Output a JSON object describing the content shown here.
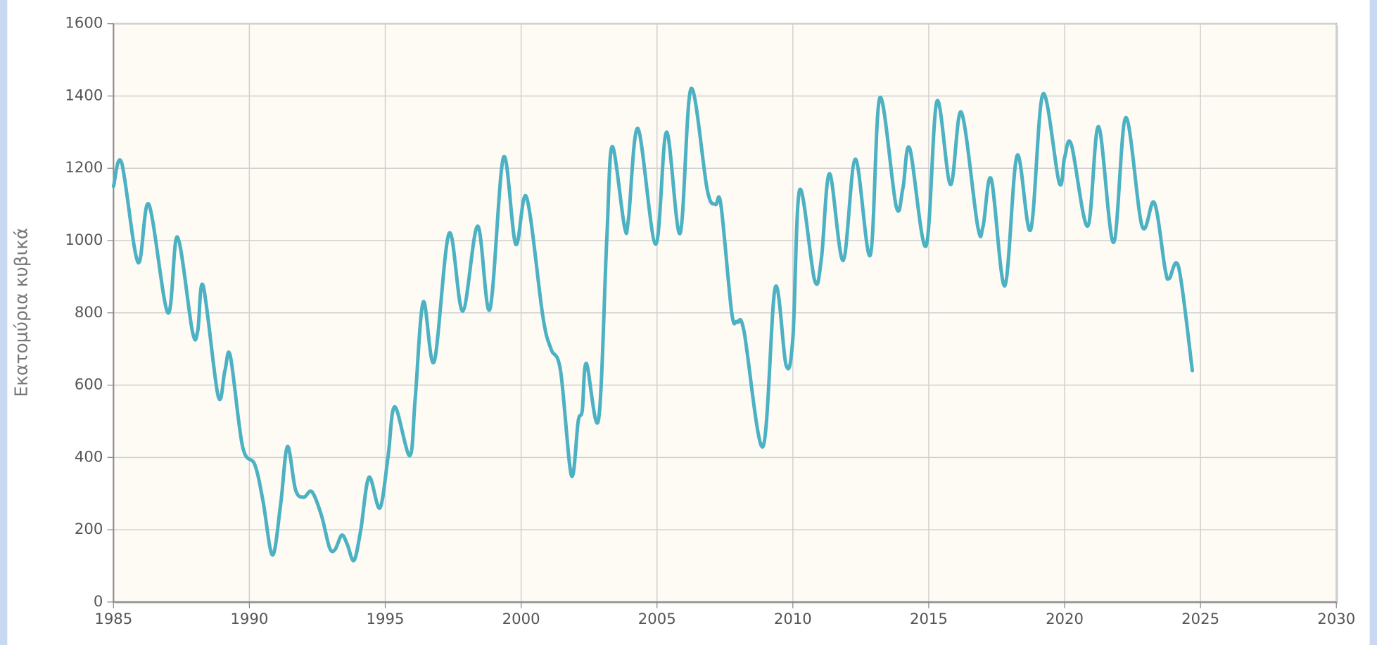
{
  "chart_data": {
    "type": "line",
    "y_label": "Εκατομύρια κυβικά",
    "xlim": [
      1985,
      2030
    ],
    "xticks": [
      1985,
      1990,
      1995,
      2000,
      2005,
      2010,
      2015,
      2020,
      2025,
      2030
    ],
    "ylim": [
      0,
      1600
    ],
    "yticks": [
      0,
      200,
      400,
      600,
      800,
      1000,
      1200,
      1400,
      1600
    ],
    "grid": true,
    "series": [
      {
        "color": "#4db1c4",
        "x": [
          1985.0,
          1985.3,
          1985.9,
          1986.3,
          1987.0,
          1987.35,
          1987.9,
          1988.1,
          1988.3,
          1988.85,
          1989.1,
          1989.3,
          1989.75,
          1990.2,
          1990.5,
          1990.85,
          1991.15,
          1991.4,
          1991.7,
          1992.0,
          1992.3,
          1992.65,
          1992.95,
          1993.15,
          1993.4,
          1993.6,
          1993.85,
          1994.1,
          1994.4,
          1994.8,
          1995.1,
          1995.35,
          1995.9,
          1996.1,
          1996.4,
          1996.8,
          1997.35,
          1997.85,
          1998.4,
          1998.85,
          1999.35,
          1999.8,
          2000.2,
          2000.8,
          2001.1,
          2001.45,
          2001.85,
          2002.1,
          2002.25,
          2002.4,
          2002.85,
          2003.15,
          2003.35,
          2003.8,
          2003.95,
          2004.3,
          2004.95,
          2005.35,
          2005.85,
          2006.25,
          2006.85,
          2007.15,
          2007.35,
          2007.75,
          2007.95,
          2008.2,
          2008.9,
          2009.35,
          2009.75,
          2010.0,
          2010.25,
          2010.8,
          2011.05,
          2011.35,
          2011.85,
          2012.3,
          2012.85,
          2013.2,
          2013.8,
          2014.05,
          2014.3,
          2014.9,
          2015.3,
          2015.8,
          2016.2,
          2016.8,
          2017.0,
          2017.3,
          2017.8,
          2018.25,
          2018.75,
          2019.2,
          2019.8,
          2020.0,
          2020.25,
          2020.85,
          2021.25,
          2021.8,
          2022.25,
          2022.85,
          2023.3,
          2023.7,
          2023.85,
          2024.2,
          2024.7
        ],
        "values": [
          1150,
          1215,
          940,
          1100,
          800,
          1010,
          750,
          750,
          875,
          570,
          640,
          680,
          430,
          380,
          280,
          130,
          270,
          430,
          310,
          290,
          305,
          240,
          150,
          145,
          185,
          160,
          115,
          200,
          345,
          260,
          400,
          540,
          405,
          560,
          830,
          665,
          1020,
          805,
          1040,
          810,
          1230,
          990,
          1120,
          790,
          700,
          640,
          350,
          500,
          530,
          660,
          505,
          1000,
          1260,
          1040,
          1060,
          1310,
          990,
          1300,
          1020,
          1420,
          1140,
          1100,
          1100,
          800,
          775,
          750,
          430,
          870,
          655,
          730,
          1140,
          890,
          950,
          1185,
          945,
          1225,
          960,
          1395,
          1095,
          1145,
          1255,
          985,
          1385,
          1155,
          1355,
          1040,
          1040,
          1170,
          875,
          1235,
          1030,
          1405,
          1160,
          1230,
          1265,
          1040,
          1315,
          995,
          1340,
          1040,
          1105,
          920,
          895,
          925,
          640
        ]
      }
    ]
  }
}
